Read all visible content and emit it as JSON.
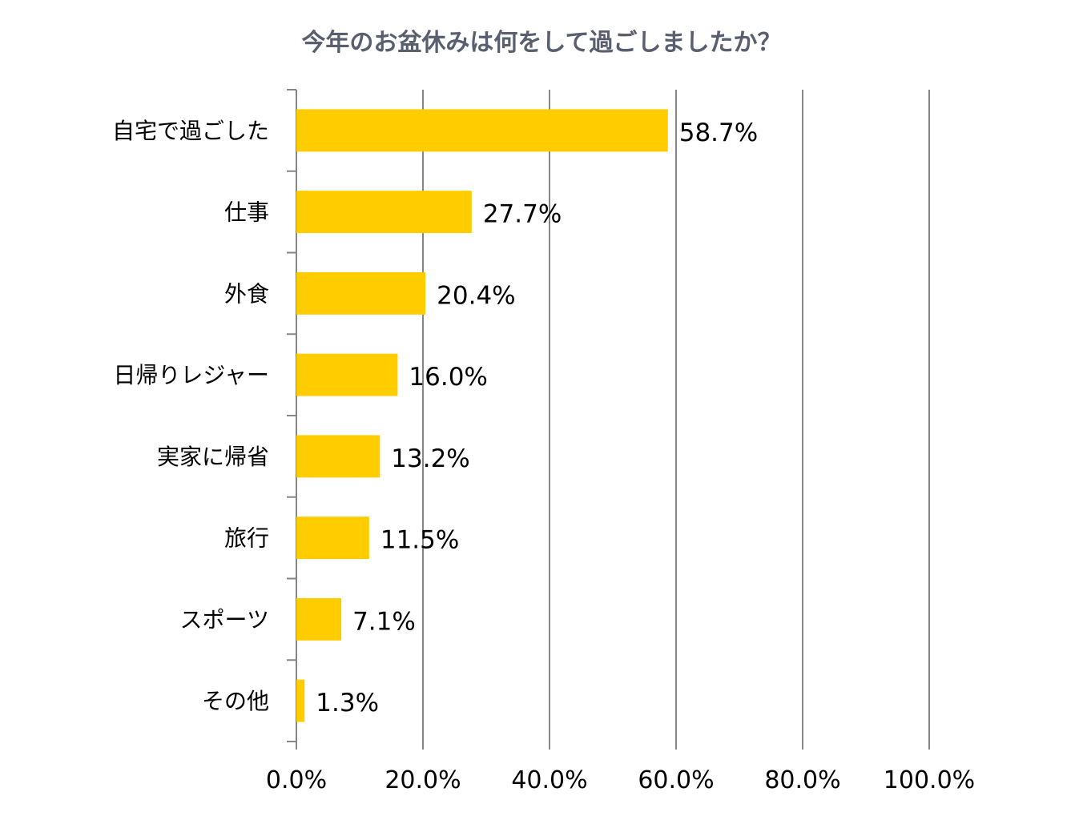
{
  "chart_data": {
    "type": "bar",
    "orientation": "horizontal",
    "title": "今年のお盆休みは何をして過ごしましたか？",
    "categories": [
      "自宅で過ごした",
      "仕事",
      "外食",
      "日帰りレジャー",
      "実家に帰省",
      "旅行",
      "スポーツ",
      "その他"
    ],
    "values": [
      58.7,
      27.7,
      20.4,
      16.0,
      13.2,
      11.5,
      7.1,
      1.3
    ],
    "data_labels": [
      "58.7%",
      "27.7%",
      "20.4%",
      "16.0%",
      "13.2%",
      "11.5%",
      "7.1%",
      "1.3%"
    ],
    "x_ticks": [
      0,
      20,
      40,
      60,
      80,
      100
    ],
    "x_tick_labels": [
      "0.0%",
      "20.0%",
      "40.0%",
      "60.0%",
      "80.0%",
      "100.0%"
    ],
    "xlim": [
      0,
      100
    ],
    "xlabel": "",
    "ylabel": "",
    "grid": true,
    "legend": "none",
    "colors": {
      "bar": "#FFCC00",
      "grid": "#868686",
      "title": "#595F6E",
      "text": "#000000"
    }
  }
}
